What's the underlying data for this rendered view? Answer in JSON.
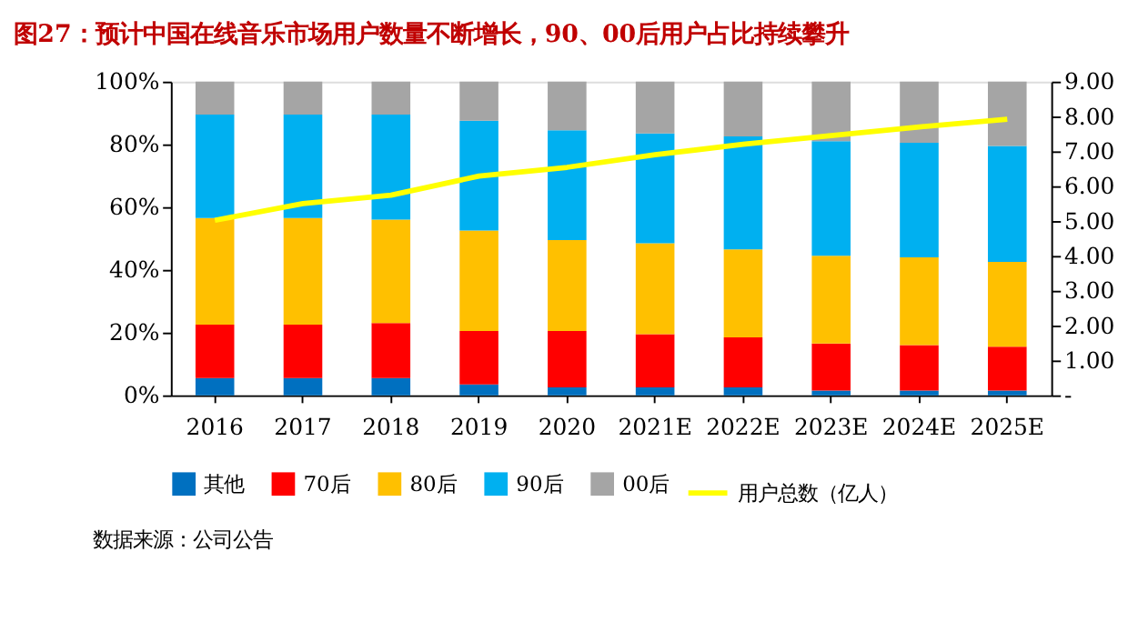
{
  "chart_data": {
    "type": "bar",
    "stacked": true,
    "title": "图27：预计中国在线音乐市场用户数量不断增长，90、00后用户占比持续攀升",
    "categories": [
      "2016",
      "2017",
      "2018",
      "2019",
      "2020",
      "2021E",
      "2022E",
      "2023E",
      "2024E",
      "2025E"
    ],
    "series": [
      {
        "name": "其他",
        "color": "#0070c0",
        "values": [
          5.5,
          5.5,
          5.5,
          3.5,
          2.5,
          2.5,
          2.5,
          1.5,
          1.5,
          1.5
        ]
      },
      {
        "name": "70后",
        "color": "#ff0000",
        "values": [
          17,
          17,
          17.5,
          17,
          18,
          17,
          16,
          15,
          14.5,
          14
        ]
      },
      {
        "name": "80后",
        "color": "#ffc000",
        "values": [
          34,
          34,
          33,
          32,
          29,
          29,
          28,
          28,
          28,
          27
        ]
      },
      {
        "name": "90后",
        "color": "#00b0f0",
        "values": [
          33,
          33,
          33.5,
          35,
          35,
          35,
          36,
          36.5,
          36.5,
          37
        ]
      },
      {
        "name": "00后",
        "color": "#a5a5a5",
        "values": [
          10.5,
          10.5,
          10.5,
          12.5,
          15.5,
          16.5,
          17.5,
          19,
          19.5,
          20.5
        ]
      },
      {
        "name": "用户总数（亿人）",
        "color": "#ffff00",
        "type": "line",
        "axis": "y2",
        "values": [
          5.02,
          5.5,
          5.74,
          6.29,
          6.54,
          6.9,
          7.2,
          7.45,
          7.7,
          7.92
        ]
      }
    ],
    "ylim": [
      0,
      100
    ],
    "yticks": [
      {
        "value": 0,
        "label": "0%"
      },
      {
        "value": 20,
        "label": "20%"
      },
      {
        "value": 40,
        "label": "40%"
      },
      {
        "value": 60,
        "label": "60%"
      },
      {
        "value": 80,
        "label": "80%"
      },
      {
        "value": 100,
        "label": "100%"
      }
    ],
    "y2lim": [
      0,
      9
    ],
    "y2ticks": [
      {
        "value": 0,
        "label": "-"
      },
      {
        "value": 1,
        "label": "1.00"
      },
      {
        "value": 2,
        "label": "2.00"
      },
      {
        "value": 3,
        "label": "3.00"
      },
      {
        "value": 4,
        "label": "4.00"
      },
      {
        "value": 5,
        "label": "5.00"
      },
      {
        "value": 6,
        "label": "6.00"
      },
      {
        "value": 7,
        "label": "7.00"
      },
      {
        "value": 8,
        "label": "8.00"
      },
      {
        "value": 9,
        "label": "9.00"
      }
    ],
    "grid": false,
    "legend": "bottom",
    "annotations": [
      "数据来源：公司公告"
    ]
  }
}
